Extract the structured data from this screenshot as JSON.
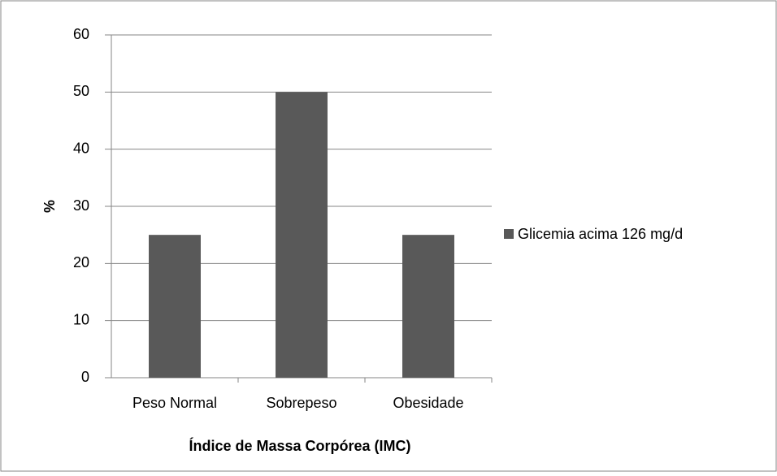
{
  "chart_data": {
    "type": "bar",
    "categories": [
      "Peso Normal",
      "Sobrepeso",
      "Obesidade"
    ],
    "series": [
      {
        "name": "Glicemia acima 126 mg/d",
        "color": "#595959",
        "values": [
          25,
          50,
          25
        ]
      }
    ],
    "ylim": [
      0,
      60
    ],
    "yticks": [
      0,
      10,
      20,
      30,
      40,
      50,
      60
    ],
    "grid": true,
    "x_label": "Índice de Massa Corpórea (IMC)",
    "y_label": "%",
    "legend": "right"
  }
}
